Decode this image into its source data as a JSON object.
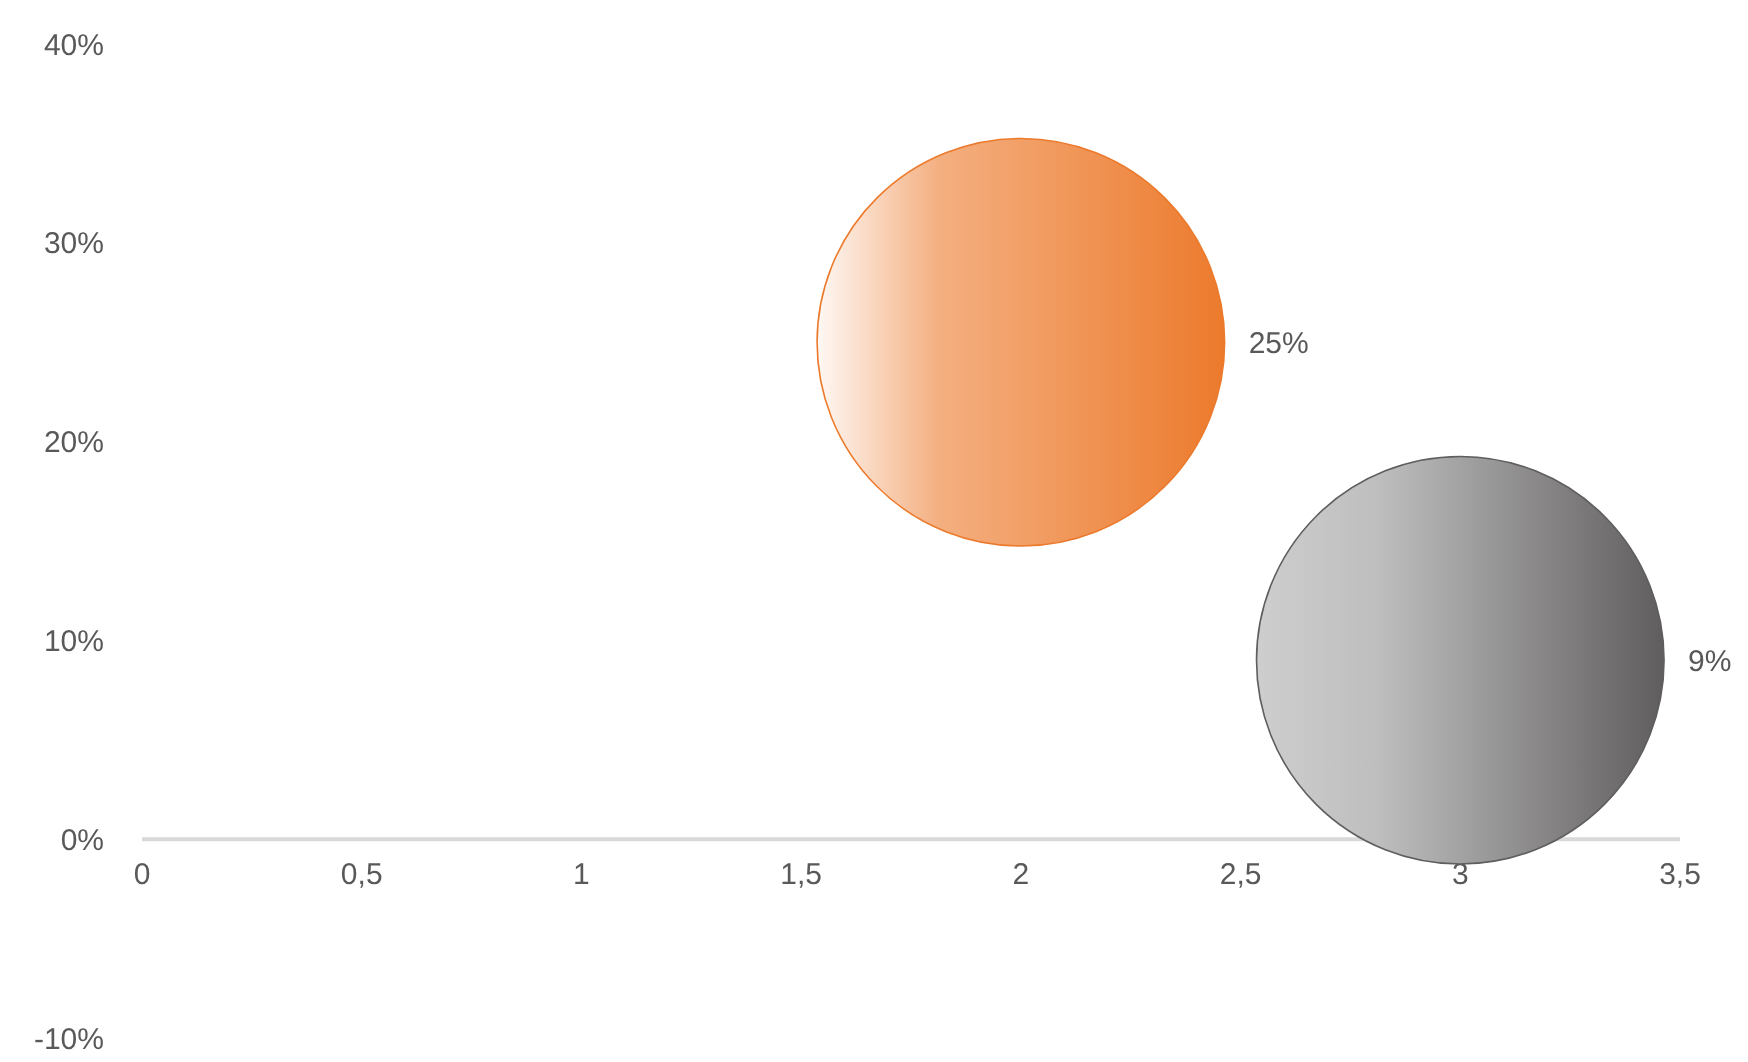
{
  "chart_data": {
    "type": "bubble",
    "x": [
      2,
      3
    ],
    "values": [
      25,
      9
    ],
    "sizes": [
      1,
      1
    ],
    "colors": [
      "#ec7a2c",
      "#5f5d5e"
    ],
    "value_labels": [
      "25%",
      "9%"
    ],
    "xlim": [
      0,
      3.5
    ],
    "xticks": [
      0,
      {
        "value": 0.5,
        "label": "0,5"
      },
      1,
      {
        "value": 1.5,
        "label": "1,5"
      },
      2,
      {
        "value": 2.5,
        "label": "2,5"
      },
      3,
      {
        "value": 3.5,
        "label": "3,5"
      }
    ],
    "ylim": [
      -10,
      40
    ],
    "yticks": [
      {
        "value": -10,
        "label": "-10%"
      },
      {
        "value": 0,
        "label": "0%"
      },
      {
        "value": 10,
        "label": "10%"
      },
      {
        "value": 20,
        "label": "20%"
      },
      {
        "value": 30,
        "label": "30%"
      },
      {
        "value": 40,
        "label": "40%"
      }
    ],
    "grid": false
  }
}
